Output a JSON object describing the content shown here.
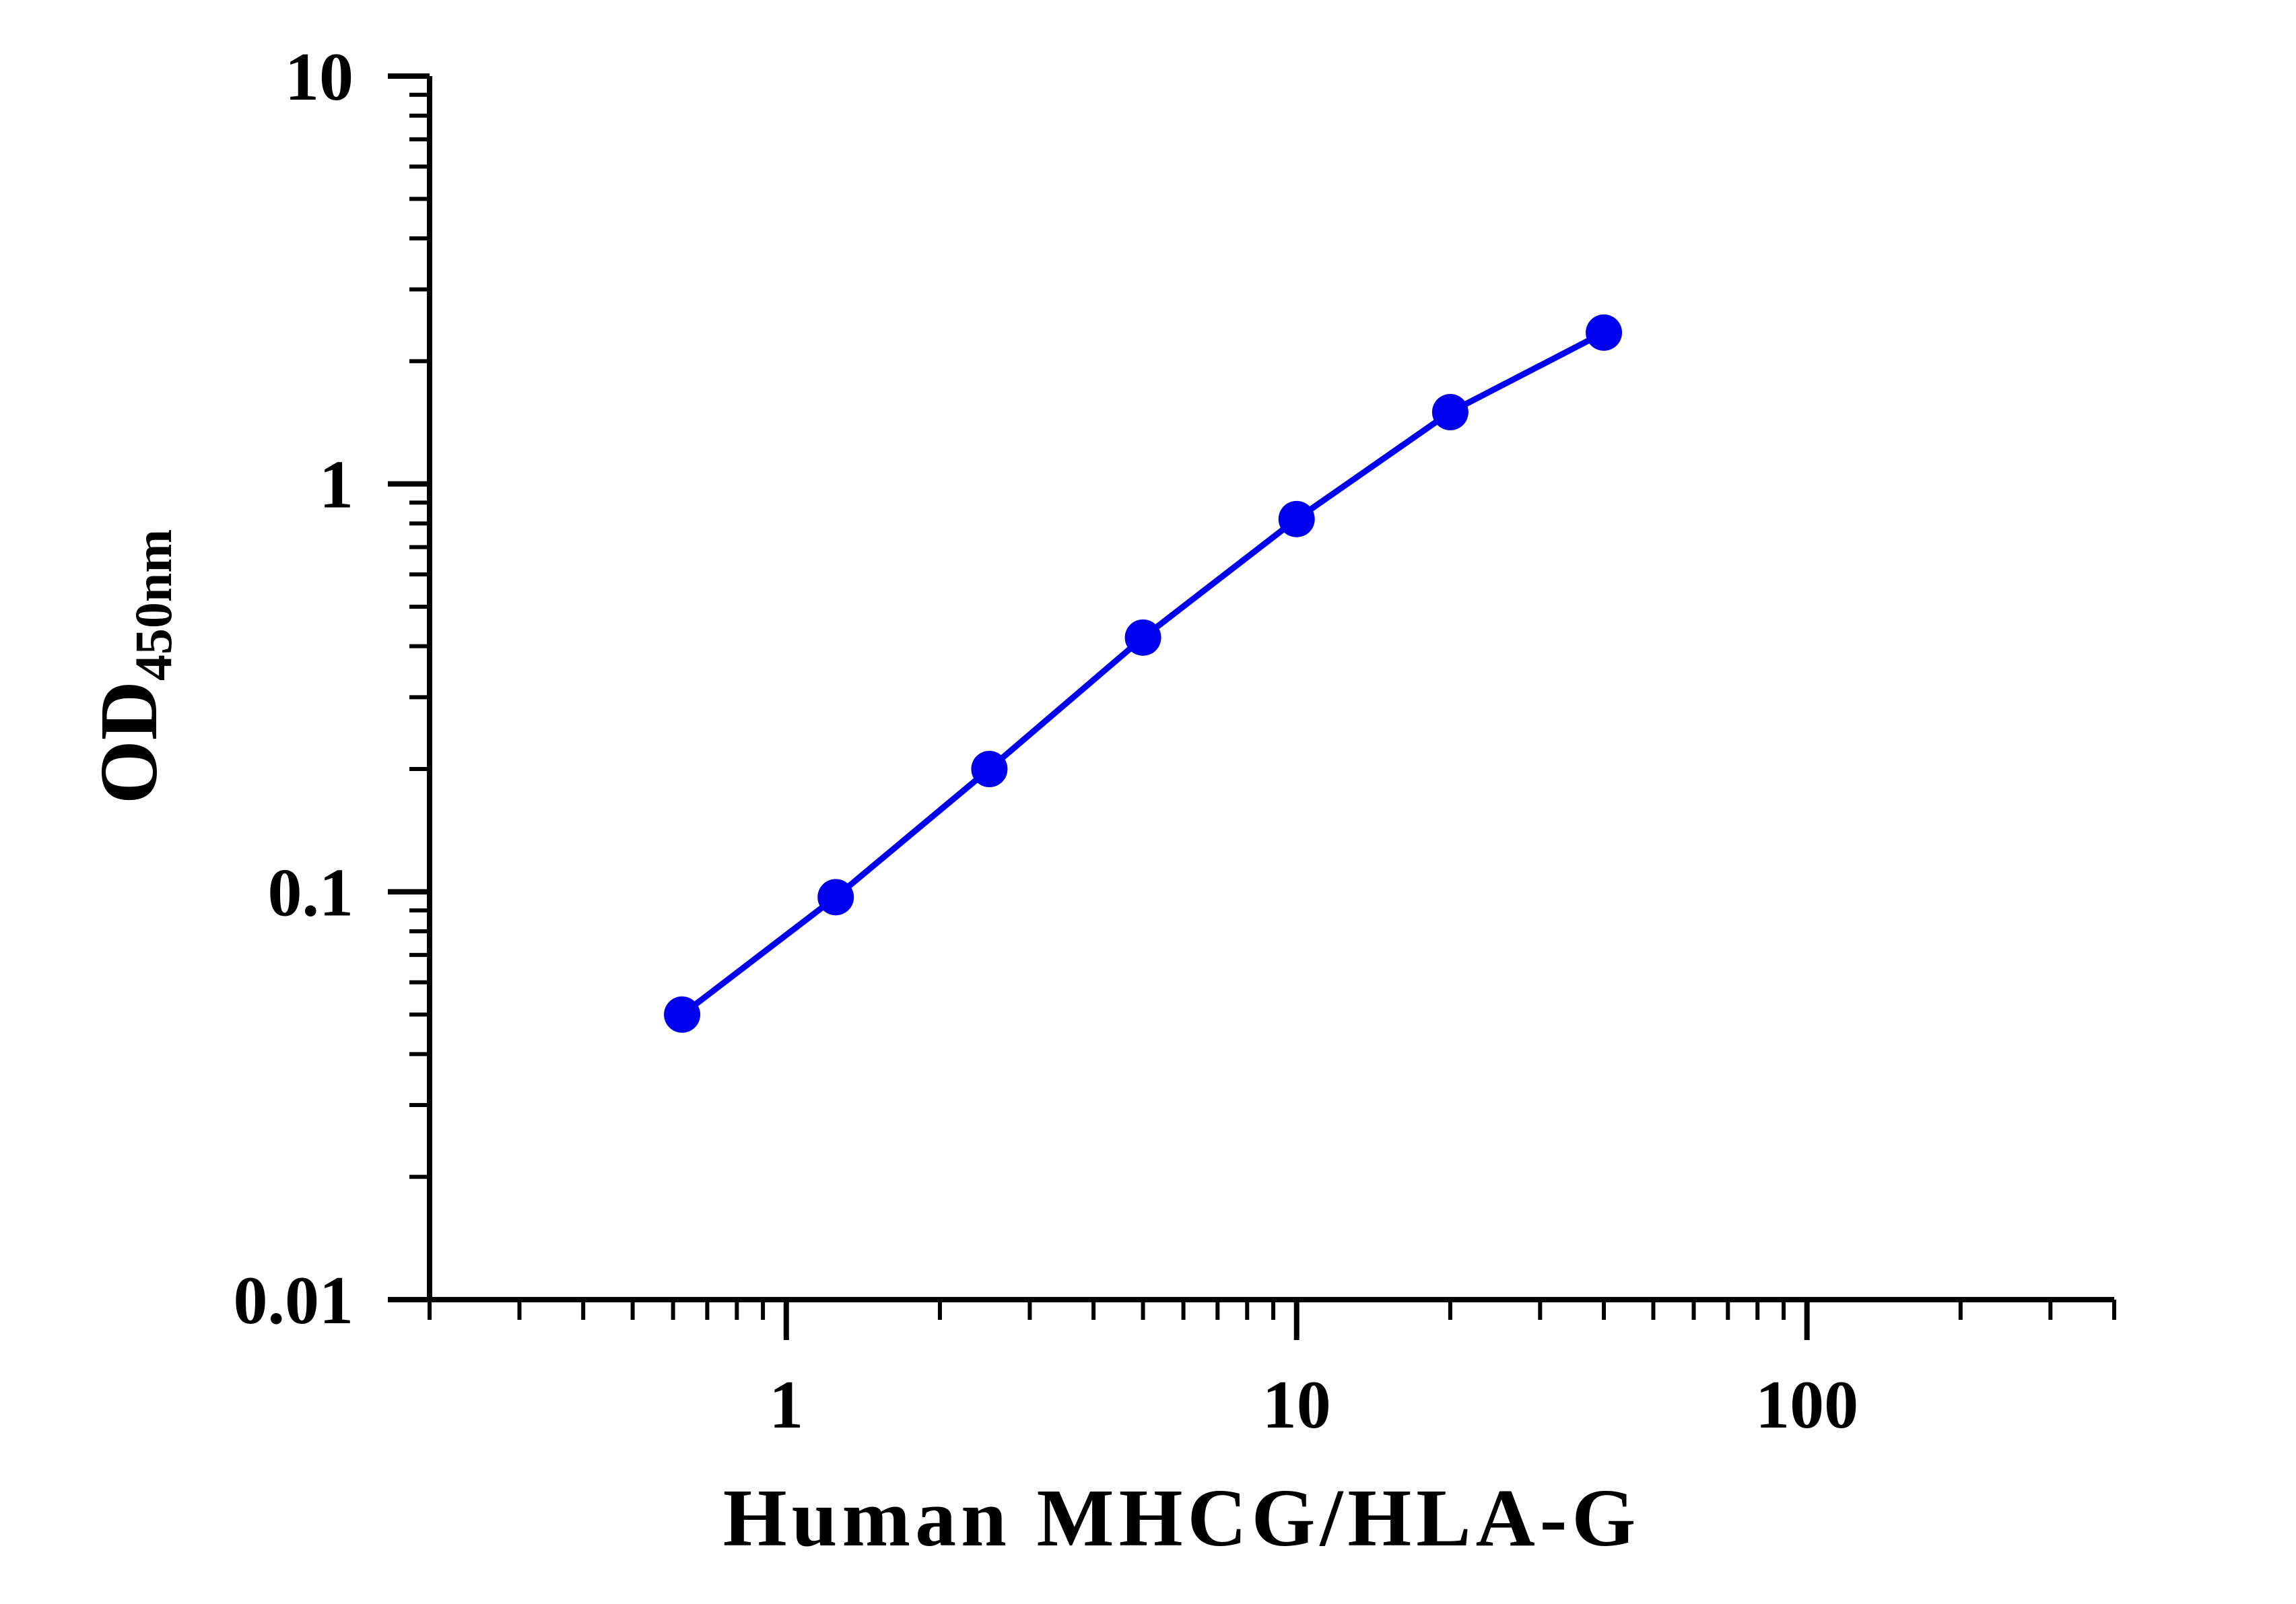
{
  "chart_data": {
    "type": "line",
    "x_scale": "log",
    "y_scale": "log",
    "xlabel": "Human MHCG/HLA-G",
    "ylabel_main": "OD",
    "ylabel_sub": "450nm",
    "xlim": [
      0.2,
      400
    ],
    "ylim": [
      0.01,
      10
    ],
    "x_ticks": [
      1,
      10,
      100
    ],
    "x_tick_labels": [
      "1",
      "10",
      "100"
    ],
    "y_ticks": [
      0.01,
      0.1,
      1,
      10
    ],
    "y_tick_labels": [
      "0.01",
      "0.1",
      "1",
      "10"
    ],
    "grid": false,
    "series": [
      {
        "color": "#0000ee",
        "marker": "circle",
        "x": [
          0.625,
          1.25,
          2.5,
          5,
          10,
          20,
          40
        ],
        "y": [
          0.05,
          0.097,
          0.2,
          0.42,
          0.82,
          1.5,
          2.35
        ]
      }
    ]
  }
}
